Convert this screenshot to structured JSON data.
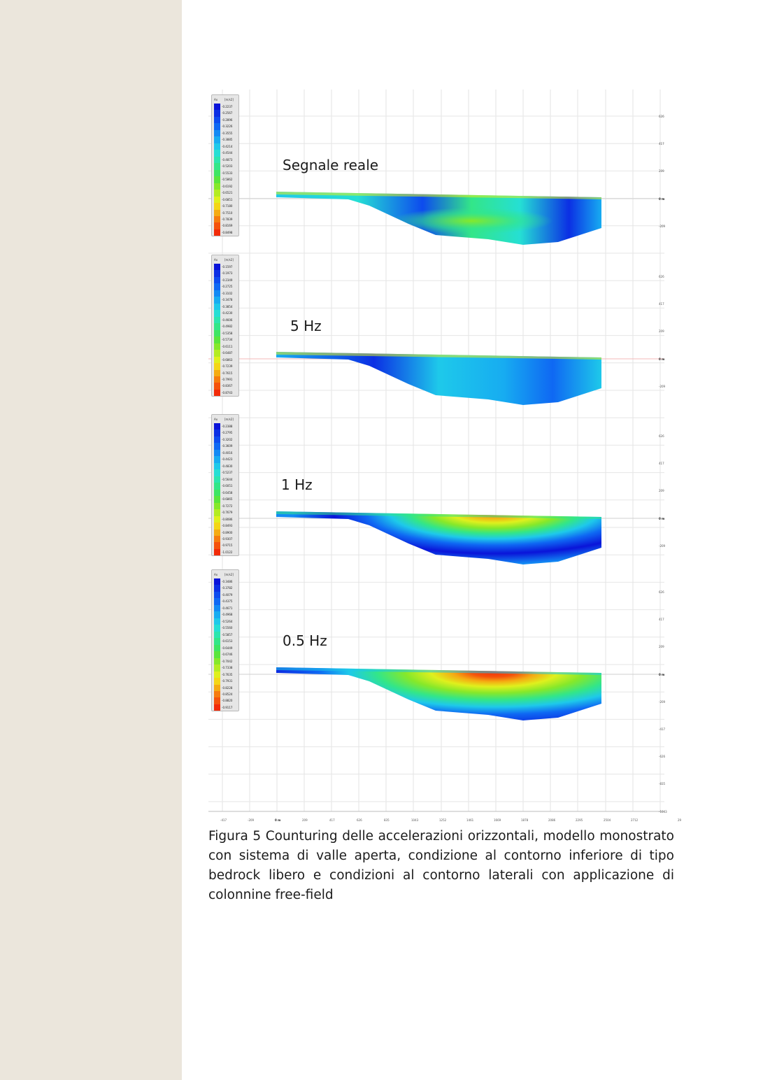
{
  "figure": {
    "legend_header": {
      "quantity": "Ax",
      "unit": "[m/s2]"
    },
    "panels": [
      {
        "label": "Segnale reale",
        "legend_values": [
          "-0.2237",
          "-0.2567",
          "-0.2896",
          "-0.3226",
          "-0.3555",
          "-0.3885",
          "-0.4214",
          "-0.4544",
          "-0.4873",
          "-0.5203",
          "-0.5533",
          "-0.5862",
          "-0.6192",
          "-0.6521",
          "-0.6851",
          "-0.7180",
          "-0.7510",
          "-0.7839",
          "-0.8169",
          "-0.8498"
        ],
        "right_axis": [
          "626",
          "417",
          "209",
          "0 m",
          "-209"
        ]
      },
      {
        "label": "5 Hz",
        "legend_values": [
          "-0.1597",
          "-0.1973",
          "-0.2349",
          "-0.2725",
          "-0.3102",
          "-0.3478",
          "-0.3854",
          "-0.4230",
          "-0.4606",
          "-0.4982",
          "-0.5358",
          "-0.5734",
          "-0.6111",
          "-0.6487",
          "-0.6863",
          "-0.7239",
          "-0.7615",
          "-0.7991",
          "-0.8367",
          "-0.8743"
        ],
        "right_axis": [
          "626",
          "417",
          "209",
          "0 m",
          "-209"
        ]
      },
      {
        "label": "1 Hz",
        "legend_values": [
          "-0.2388",
          "-0.2795",
          "-0.3202",
          "-0.3609",
          "-0.4016",
          "-0.4423",
          "-0.4830",
          "-0.5237",
          "-0.5644",
          "-0.6051",
          "-0.6458",
          "-0.6865",
          "-0.7272",
          "-0.7679",
          "-0.8086",
          "-0.8493",
          "-0.8900",
          "-0.9307",
          "-0.9715",
          "-1.0122"
        ],
        "right_axis": [
          "626",
          "417",
          "209",
          "0 m",
          "-209"
        ]
      },
      {
        "label": "0.5 Hz",
        "legend_values": [
          "-0.3486",
          "-0.3782",
          "-0.4079",
          "-0.4375",
          "-0.4671",
          "-0.4968",
          "-0.5264",
          "-0.5560",
          "-0.5857",
          "-0.6153",
          "-0.6449",
          "-0.6746",
          "-0.7042",
          "-0.7338",
          "-0.7635",
          "-0.7931",
          "-0.8228",
          "-0.8524",
          "-0.8820",
          "-0.9117"
        ],
        "right_axis": [
          "626",
          "417",
          "209",
          "0 m",
          "-209",
          "-417",
          "-626",
          "-835",
          "-1043"
        ]
      }
    ],
    "x_axis_ticks": [
      "-417",
      "-209",
      "0 m",
      "209",
      "417",
      "626",
      "835",
      "1043",
      "1252",
      "1461",
      "1669",
      "1878",
      "2086",
      "2295",
      "2504",
      "2712",
      "29"
    ],
    "colormap": [
      "#0a14d9",
      "#0b2fe4",
      "#0d4bee",
      "#0f68f3",
      "#128af4",
      "#17acf1",
      "#1ec9ea",
      "#25dfd4",
      "#2ce6ae",
      "#33e688",
      "#3ee563",
      "#5ae53c",
      "#86e82a",
      "#b4ec22",
      "#dff01d",
      "#f4d616",
      "#f5ab12",
      "#f67c0f",
      "#f5530c",
      "#f22b09"
    ],
    "caption": "Figura 5 Counturing delle accelerazioni orizzontali, modello monostrato con sistema di valle aperta, condizione al contorno inferiore di tipo bedrock libero e condizioni al contorno laterali con applicazione di colonnine free-field"
  }
}
